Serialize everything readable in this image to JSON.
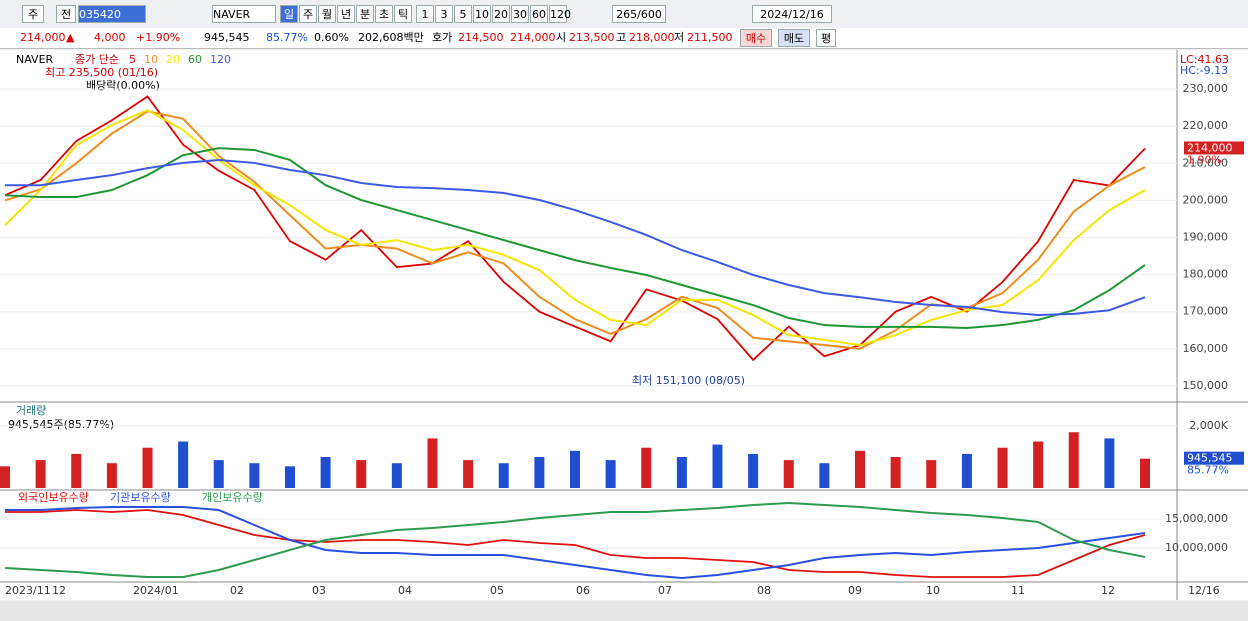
{
  "toolbar": {
    "market": "주",
    "scope": "전",
    "code": "035420",
    "name": "NAVER",
    "periods": [
      "일",
      "주",
      "월",
      "년",
      "분",
      "초",
      "틱"
    ],
    "intervals": [
      "1",
      "3",
      "5",
      "10",
      "20",
      "30",
      "60",
      "120"
    ],
    "count": "265",
    "max": "/600",
    "date": "2024/12/16"
  },
  "info": {
    "price": "214,000",
    "arrow": "▲",
    "change": "4,000",
    "rate": "+1.90%",
    "volume": "945,545",
    "vol_ratio": "85.77%",
    "turnover": "0.60%",
    "amount": "202,608백만",
    "quote_label": "호가",
    "ask": "214,500",
    "bid": "214,000",
    "open_label": "시",
    "open": "213,500",
    "high_label": "고",
    "high": "218,000",
    "low_label": "저",
    "low": "211,500",
    "buy": "매수",
    "sell": "매도",
    "avg": "평"
  },
  "price_chart": {
    "symbol": "NAVER",
    "ma_label": "종가 단순",
    "lc": "LC:41.63",
    "hc": "HC:-9.13",
    "last_label": "214,000",
    "change_label": "1.90%",
    "annotations": {
      "high": "최고 235,500 (01/16)",
      "dividend": "배당락(0.00%)",
      "low": "최저 151,100 (08/05)"
    },
    "ylim": [
      146200,
      240000
    ],
    "yticks": [
      {
        "value": 150000,
        "label": "150,000"
      },
      {
        "value": 160000,
        "label": "160,000"
      },
      {
        "value": 170000,
        "label": "170,000"
      },
      {
        "value": 180000,
        "label": "180,000"
      },
      {
        "value": 190000,
        "label": "190,000"
      },
      {
        "value": 200000,
        "label": "200,000"
      },
      {
        "value": 210000,
        "label": "210,000"
      },
      {
        "value": 220000,
        "label": "220,000"
      },
      {
        "value": 230000,
        "label": "230,000"
      }
    ],
    "series": [
      {
        "name": "5",
        "color": "#e00000",
        "values": [
          201400,
          205500,
          216000,
          221600,
          228000,
          215000,
          208000,
          202800,
          189000,
          184000,
          192000,
          182000,
          183000,
          189000,
          178000,
          170000,
          166000,
          162000,
          176000,
          173000,
          168000,
          157000,
          166000,
          158000,
          161000,
          170000,
          174000,
          170000,
          178000,
          189000,
          205500,
          204000,
          214000
        ]
      },
      {
        "name": "10",
        "color": "#f08c1e",
        "values": [
          200000,
          203000,
          210000,
          218000,
          224000,
          222000,
          212000,
          205000,
          196000,
          187000,
          188000,
          187000,
          183000,
          186000,
          183000,
          174000,
          168000,
          164000,
          168000,
          174000,
          171000,
          163000,
          162000,
          161000,
          160000,
          165000,
          172000,
          171000,
          175000,
          184000,
          197000,
          204000,
          209000
        ]
      },
      {
        "name": "20",
        "color": "#f5e600",
        "values": [
          193300,
          202800,
          214900,
          220300,
          224300,
          219000,
          210900,
          204100,
          198700,
          192000,
          188000,
          189300,
          186600,
          188000,
          185300,
          181200,
          173200,
          167800,
          166400,
          173200,
          173200,
          169100,
          163700,
          162400,
          161000,
          163700,
          167800,
          170400,
          171800,
          178500,
          189300,
          197400,
          202800
        ]
      },
      {
        "name": "60",
        "color": "#1e9632",
        "values": [
          201400,
          200900,
          200900,
          202800,
          206800,
          212200,
          214100,
          213600,
          210900,
          204100,
          200100,
          197400,
          194700,
          192000,
          189300,
          186600,
          183900,
          181800,
          179900,
          177200,
          174500,
          171800,
          168300,
          166400,
          165900,
          165900,
          165900,
          165600,
          166400,
          167800,
          170400,
          175800,
          182600
        ]
      },
      {
        "name": "120",
        "color": "#3c5ae6",
        "values": [
          204100,
          204100,
          205500,
          206800,
          208700,
          210100,
          210900,
          210100,
          208200,
          206800,
          204700,
          203600,
          203300,
          202800,
          202000,
          200100,
          197400,
          194200,
          190700,
          186600,
          183400,
          179900,
          177200,
          175000,
          173900,
          172600,
          171800,
          171300,
          169900,
          169100,
          169400,
          170400,
          173900
        ]
      }
    ]
  },
  "volume_chart": {
    "title": "거래량",
    "summary": "945,545주(85.77%)",
    "last_label": "945,545",
    "ratio_label": "85.77%",
    "ylim": [
      0,
      2710000
    ],
    "yticks": [
      {
        "value": 2000000,
        "label": "2,000K"
      }
    ],
    "up_color": "#d42020",
    "down_color": "#1f4fd0",
    "values": [
      700000,
      900000,
      1100000,
      800000,
      1300000,
      1500000,
      900000,
      800000,
      700000,
      1000000,
      900000,
      800000,
      1600000,
      900000,
      800000,
      1000000,
      1200000,
      900000,
      1300000,
      1000000,
      1400000,
      1100000,
      900000,
      800000,
      1200000,
      1000000,
      900000,
      1100000,
      1300000,
      1500000,
      1800000,
      1600000,
      945545
    ]
  },
  "holdings_chart": {
    "ylim": [
      4480000,
      19660000
    ],
    "yticks": [
      {
        "value": 10000000,
        "label": "10,000,000"
      },
      {
        "value": 15000000,
        "label": "15,000,000"
      }
    ],
    "series": [
      {
        "name": "외국인보유수량",
        "color": "#e01010",
        "values": [
          16210000,
          16210000,
          16550000,
          16210000,
          16550000,
          15690000,
          13970000,
          12240000,
          11380000,
          11030000,
          11380000,
          11380000,
          11030000,
          10520000,
          11380000,
          10860000,
          10520000,
          8790000,
          8280000,
          8280000,
          7930000,
          7590000,
          6210000,
          5860000,
          5860000,
          5340000,
          5000000,
          5000000,
          5000000,
          5340000,
          7930000,
          10520000,
          12240000
        ]
      },
      {
        "name": "기관보유수량",
        "color": "#2a50e0",
        "values": [
          16550000,
          16550000,
          16900000,
          17070000,
          17070000,
          17070000,
          16550000,
          13970000,
          11380000,
          9660000,
          9140000,
          9140000,
          8790000,
          8790000,
          8790000,
          7930000,
          7070000,
          6210000,
          5340000,
          4830000,
          5340000,
          6210000,
          7070000,
          8280000,
          8790000,
          9140000,
          8790000,
          9310000,
          9660000,
          10000000,
          10860000,
          11720000,
          12590000
        ]
      },
      {
        "name": "개인보유수량",
        "color": "#2e9a50",
        "values": [
          6550000,
          6210000,
          5860000,
          5340000,
          5000000,
          5000000,
          6210000,
          7930000,
          9660000,
          11380000,
          12240000,
          13100000,
          13450000,
          13970000,
          14480000,
          15170000,
          15690000,
          16210000,
          16210000,
          16550000,
          16900000,
          17410000,
          17760000,
          17410000,
          17070000,
          16550000,
          16030000,
          15690000,
          15170000,
          14480000,
          11380000,
          9660000,
          8450000
        ]
      }
    ]
  },
  "x_axis": [
    "2023/11",
    "12",
    "2024/01",
    "02",
    "03",
    "04",
    "05",
    "06",
    "07",
    "08",
    "09",
    "10",
    "11",
    "12",
    "12/16"
  ]
}
